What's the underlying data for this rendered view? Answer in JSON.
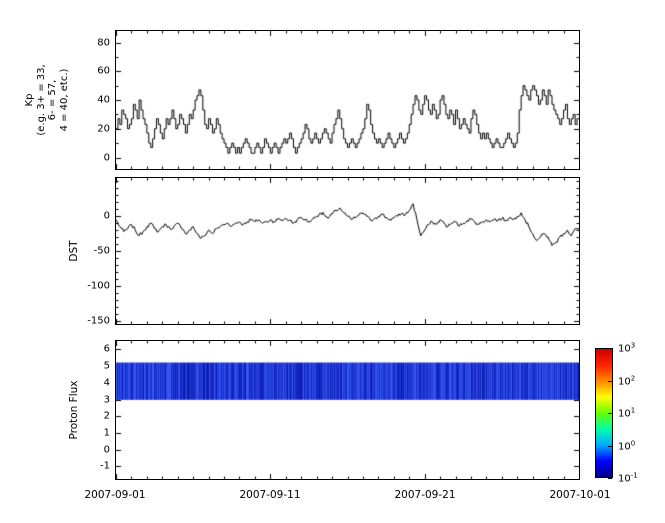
{
  "figure": {
    "background": "#ffffff"
  },
  "x_axis": {
    "tick_labels": [
      "2007-09-01",
      "2007-09-11",
      "2007-09-21",
      "2007-10-01"
    ],
    "tick_days": [
      0,
      10,
      20,
      30
    ],
    "span_days": 30,
    "minor_tick_step_days": 1
  },
  "colors": {
    "line": "#000000",
    "axis": "#000000",
    "band_base": "#0000cc"
  },
  "chart_data": [
    {
      "type": "line",
      "name": "kp-index",
      "ylabel_lines": [
        "Kp",
        "(e.g. 3+ = 33,",
        "6- = 57,",
        "4 = 40, etc.)"
      ],
      "ylim": [
        -8,
        88
      ],
      "yticks": [
        0,
        20,
        40,
        60,
        80
      ],
      "y_minor_step": 10,
      "step_plot": true,
      "x_start_days": 0,
      "x_step_days": 0.125,
      "values": [
        20,
        27,
        23,
        33,
        30,
        27,
        20,
        23,
        27,
        37,
        33,
        27,
        40,
        33,
        27,
        23,
        17,
        10,
        7,
        13,
        20,
        27,
        23,
        17,
        13,
        20,
        27,
        23,
        27,
        33,
        27,
        20,
        23,
        30,
        27,
        23,
        17,
        23,
        30,
        27,
        33,
        40,
        43,
        47,
        43,
        33,
        23,
        20,
        27,
        23,
        17,
        20,
        27,
        23,
        17,
        13,
        10,
        7,
        3,
        7,
        10,
        7,
        3,
        7,
        3,
        7,
        10,
        13,
        10,
        7,
        3,
        3,
        7,
        10,
        7,
        3,
        7,
        13,
        10,
        7,
        3,
        7,
        10,
        7,
        3,
        7,
        10,
        13,
        10,
        13,
        17,
        13,
        7,
        3,
        7,
        10,
        13,
        17,
        23,
        20,
        13,
        10,
        13,
        17,
        13,
        10,
        13,
        17,
        20,
        17,
        13,
        10,
        17,
        23,
        27,
        33,
        27,
        20,
        13,
        10,
        7,
        10,
        13,
        10,
        7,
        10,
        13,
        17,
        20,
        27,
        37,
        33,
        23,
        17,
        13,
        10,
        13,
        10,
        7,
        10,
        13,
        17,
        13,
        10,
        7,
        10,
        13,
        17,
        13,
        10,
        13,
        17,
        23,
        30,
        37,
        43,
        40,
        33,
        30,
        37,
        43,
        40,
        33,
        30,
        37,
        33,
        27,
        30,
        40,
        43,
        37,
        30,
        27,
        33,
        30,
        23,
        33,
        27,
        20,
        23,
        27,
        23,
        20,
        17,
        27,
        33,
        30,
        23,
        17,
        13,
        17,
        13,
        17,
        13,
        10,
        7,
        10,
        13,
        10,
        7,
        7,
        10,
        13,
        17,
        13,
        10,
        7,
        10,
        17,
        33,
        43,
        50,
        47,
        43,
        40,
        47,
        50,
        47,
        43,
        37,
        40,
        47,
        43,
        37,
        47,
        43,
        37,
        33,
        30,
        27,
        23,
        27,
        33,
        37,
        27,
        23,
        27,
        30,
        23,
        27
      ]
    },
    {
      "type": "line",
      "name": "dst-index",
      "ylabel": "DST",
      "ylim": [
        -155,
        55
      ],
      "yticks": [
        0,
        -50,
        -100,
        -150
      ],
      "y_minor_step": 10,
      "step_plot": false,
      "x_start_days": 0,
      "x_step_days": 0.25,
      "values": [
        -5,
        -15,
        -22,
        -18,
        -12,
        -20,
        -28,
        -22,
        -15,
        -10,
        -18,
        -22,
        -15,
        -12,
        -18,
        -15,
        -10,
        -18,
        -25,
        -20,
        -15,
        -25,
        -32,
        -28,
        -20,
        -25,
        -18,
        -15,
        -12,
        -10,
        -14,
        -10,
        -8,
        -12,
        -8,
        -5,
        -8,
        -5,
        -10,
        -8,
        -5,
        -8,
        -4,
        -6,
        -3,
        -6,
        -10,
        -5,
        -2,
        -5,
        -8,
        -4,
        0,
        5,
        2,
        -3,
        3,
        8,
        12,
        5,
        0,
        -5,
        -2,
        2,
        5,
        0,
        -6,
        -3,
        0,
        3,
        -2,
        -5,
        -2,
        0,
        4,
        2,
        8,
        18,
        -5,
        -28,
        -20,
        -12,
        -8,
        -12,
        -5,
        -10,
        -15,
        -10,
        -8,
        -14,
        -10,
        -6,
        -4,
        -8,
        -12,
        -8,
        -5,
        -8,
        -4,
        -6,
        -3,
        -6,
        -2,
        -5,
        0,
        5,
        -5,
        -15,
        -25,
        -35,
        -30,
        -25,
        -30,
        -42,
        -38,
        -30,
        -25,
        -20,
        -28,
        -18
      ]
    },
    {
      "type": "heatmap",
      "name": "proton-flux",
      "ylabel": "Proton Flux",
      "ylim": [
        -1.75,
        6.5
      ],
      "yticks": [
        -1,
        0,
        1,
        2,
        3,
        4,
        5,
        6
      ],
      "band": {
        "y_min": 3.0,
        "y_max": 5.2,
        "base_color": "#0000cc",
        "streak_rgb_min": [
          10,
          25,
          175
        ],
        "streak_rgb_max": [
          55,
          90,
          250
        ],
        "value_range_log10": [
          -1,
          0
        ]
      },
      "colorbar": {
        "scale": "log",
        "tick_exponents": [
          3,
          2,
          1,
          0,
          -1
        ],
        "gradient_stops": [
          "#000088",
          "#0000ff",
          "#00aaff",
          "#00ffaa",
          "#66ff00",
          "#ffff00",
          "#ff8800",
          "#ff2200",
          "#cc0000"
        ]
      }
    }
  ]
}
